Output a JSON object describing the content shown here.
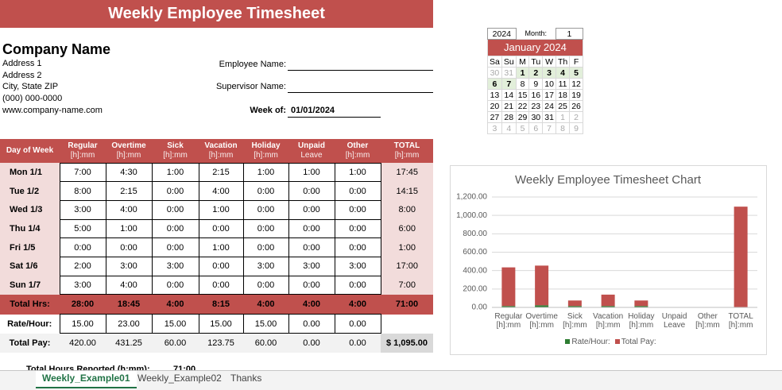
{
  "header": {
    "title": "Weekly Employee Timesheet"
  },
  "company": {
    "name": "Company Name",
    "lines": [
      "Address 1",
      "Address 2",
      "City, State  ZIP",
      "(000) 000-0000",
      "www.company-name.com"
    ]
  },
  "fields": {
    "employee_label": "Employee Name:",
    "supervisor_label": "Supervisor Name:",
    "week_label": "Week of:",
    "week_value": "01/01/2024"
  },
  "calendar": {
    "year": "2024",
    "month_label": "Month:",
    "month": "1",
    "title": "January 2024",
    "weekdays": [
      "Sa",
      "Su",
      "M",
      "Tu",
      "W",
      "Th",
      "F"
    ],
    "weeks": [
      [
        30,
        31,
        1,
        2,
        3,
        4,
        5
      ],
      [
        6,
        7,
        8,
        9,
        10,
        11,
        12
      ],
      [
        13,
        14,
        15,
        16,
        17,
        18,
        19
      ],
      [
        20,
        21,
        22,
        23,
        24,
        25,
        26
      ],
      [
        27,
        28,
        29,
        30,
        31,
        1,
        2
      ],
      [
        3,
        4,
        5,
        6,
        7,
        8,
        9
      ]
    ]
  },
  "table": {
    "columns": [
      [
        "Day of Week"
      ],
      [
        "Regular",
        "[h]:mm"
      ],
      [
        "Overtime",
        "[h]:mm"
      ],
      [
        "Sick",
        "[h]:mm"
      ],
      [
        "Vacation",
        "[h]:mm"
      ],
      [
        "Holiday",
        "[h]:mm"
      ],
      [
        "Unpaid",
        "Leave"
      ],
      [
        "Other",
        "[h]:mm"
      ],
      [
        "TOTAL",
        "[h]:mm"
      ]
    ],
    "rows": [
      [
        "Mon 1/1",
        "7:00",
        "4:30",
        "1:00",
        "2:15",
        "1:00",
        "1:00",
        "1:00",
        "17:45"
      ],
      [
        "Tue 1/2",
        "8:00",
        "2:15",
        "0:00",
        "4:00",
        "0:00",
        "0:00",
        "0:00",
        "14:15"
      ],
      [
        "Wed 1/3",
        "3:00",
        "4:00",
        "0:00",
        "1:00",
        "0:00",
        "0:00",
        "0:00",
        "8:00"
      ],
      [
        "Thu 1/4",
        "5:00",
        "1:00",
        "0:00",
        "0:00",
        "0:00",
        "0:00",
        "0:00",
        "6:00"
      ],
      [
        "Fri 1/5",
        "0:00",
        "0:00",
        "0:00",
        "1:00",
        "0:00",
        "0:00",
        "0:00",
        "1:00"
      ],
      [
        "Sat 1/6",
        "2:00",
        "3:00",
        "3:00",
        "0:00",
        "3:00",
        "3:00",
        "3:00",
        "17:00"
      ],
      [
        "Sun 1/7",
        "3:00",
        "4:00",
        "0:00",
        "0:00",
        "0:00",
        "0:00",
        "0:00",
        "7:00"
      ]
    ],
    "totals": [
      "Total Hrs:",
      "28:00",
      "18:45",
      "4:00",
      "8:15",
      "4:00",
      "4:00",
      "4:00",
      "71:00"
    ],
    "rates": [
      "Rate/Hour:",
      "15.00",
      "23.00",
      "15.00",
      "15.00",
      "15.00",
      "0.00",
      "0.00"
    ],
    "pay": [
      "Total Pay:",
      "420.00",
      "431.25",
      "60.00",
      "123.75",
      "60.00",
      "0.00",
      "0.00",
      "$ 1,095.00"
    ]
  },
  "summary": {
    "label": "Total Hours Reported (h:mm):",
    "value": "71:00"
  },
  "tabs": [
    "Weekly_Example01",
    "Weekly_Example02",
    "Thanks"
  ],
  "chart_data": {
    "type": "bar",
    "stacked": true,
    "title": "Weekly Employee Timesheet Chart",
    "categories": [
      "Regular\n[h]:mm",
      "Overtime\n[h]:mm",
      "Sick\n[h]:mm",
      "Vacation\n[h]:mm",
      "Holiday\n[h]:mm",
      "Unpaid\nLeave",
      "Other\n[h]:mm",
      "TOTAL\n[h]:mm"
    ],
    "series": [
      {
        "name": "Rate/Hour:",
        "color": "#2e7d32",
        "values": [
          15,
          23,
          15,
          15,
          15,
          0,
          0,
          null
        ]
      },
      {
        "name": "Total Pay:",
        "color": "#c0504d",
        "values": [
          420,
          431.25,
          60,
          123.75,
          60,
          0,
          0,
          1095
        ]
      }
    ],
    "ylim": [
      0,
      1200
    ],
    "yticks": [
      {
        "value": 0,
        "label": "0.00"
      },
      {
        "value": 200,
        "label": "200.00"
      },
      {
        "value": 400,
        "label": "400.00"
      },
      {
        "value": 600,
        "label": "600.00"
      },
      {
        "value": 800,
        "label": "800.00"
      },
      {
        "value": 1000,
        "label": "1,000.00"
      },
      {
        "value": 1200,
        "label": "1,200.00"
      }
    ],
    "grid": true,
    "legend": "bottom"
  }
}
